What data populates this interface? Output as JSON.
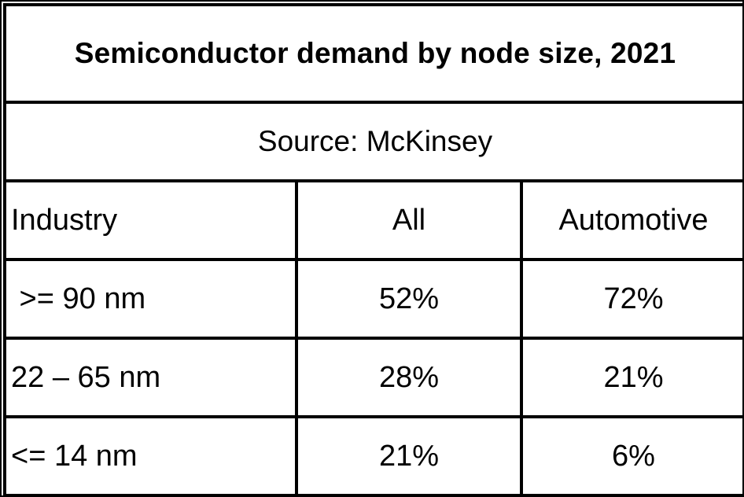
{
  "chart_data": {
    "type": "table",
    "title": "Semiconductor demand by node size, 2021",
    "subtitle": "Source: McKinsey",
    "columns": [
      "Industry",
      "All",
      "Automotive"
    ],
    "rows": [
      {
        "label": " >= 90 nm",
        "values": [
          "52%",
          "72%"
        ]
      },
      {
        "label": "22 – 65 nm",
        "values": [
          "28%",
          "21%"
        ]
      },
      {
        "label": "<= 14 nm",
        "values": [
          "21%",
          "6%"
        ]
      }
    ]
  }
}
